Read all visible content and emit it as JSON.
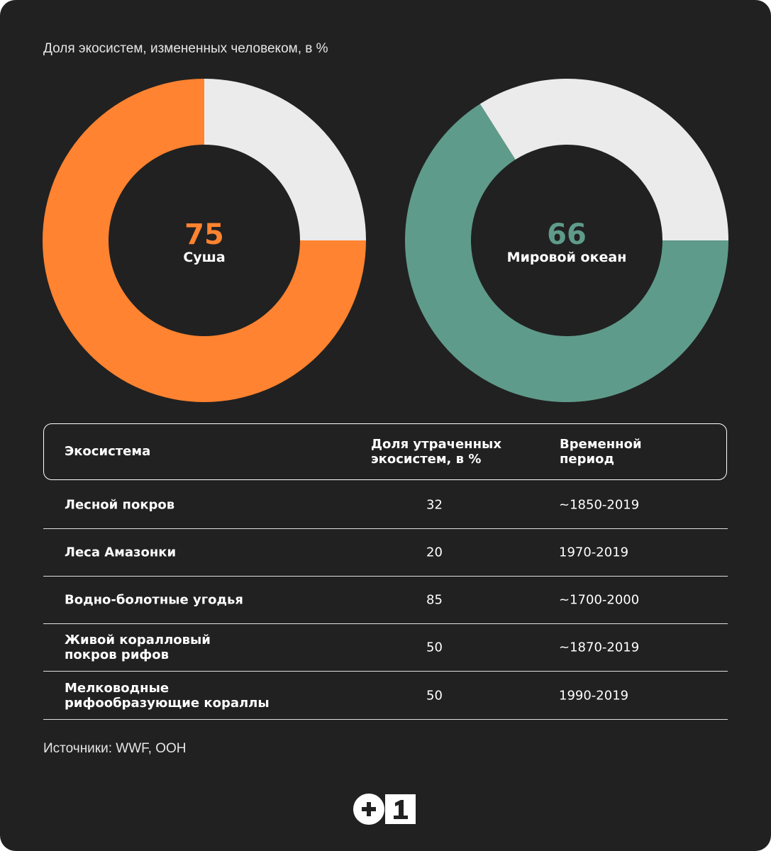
{
  "chart_data": [
    {
      "type": "pie",
      "title": "Доля экосистем, измененных человеком, в %",
      "label": "Суша",
      "value": 75,
      "remainder": 25,
      "colors": {
        "value": "#FF8330",
        "remainder": "#EBEBEB"
      }
    },
    {
      "type": "pie",
      "label": "Мировой океан",
      "value": 66,
      "remainder": 34,
      "colors": {
        "value": "#5F9B8A",
        "remainder": "#EBEBEB"
      }
    },
    {
      "type": "table",
      "columns": [
        "Экосистема",
        "Доля утраченных экосистем, в %",
        "Временной период"
      ],
      "rows": [
        {
          "name": "Лесной покров",
          "value": "32",
          "period": "~1850-2019"
        },
        {
          "name": "Леса Амазонки",
          "value": "20",
          "period": "1970-2019"
        },
        {
          "name": "Водно-болотные угодья",
          "value": "85",
          "period": "~1700-2000"
        },
        {
          "name": "Живой коралловый покров рифов",
          "value": "50",
          "period": "~1870-2019"
        },
        {
          "name": "Мелководные рифообразующие кораллы",
          "value": "50",
          "period": "1990-2019"
        }
      ]
    }
  ],
  "source": "Источники: WWF, ООН",
  "logo": {
    "text": "+1"
  },
  "background": "#212121"
}
